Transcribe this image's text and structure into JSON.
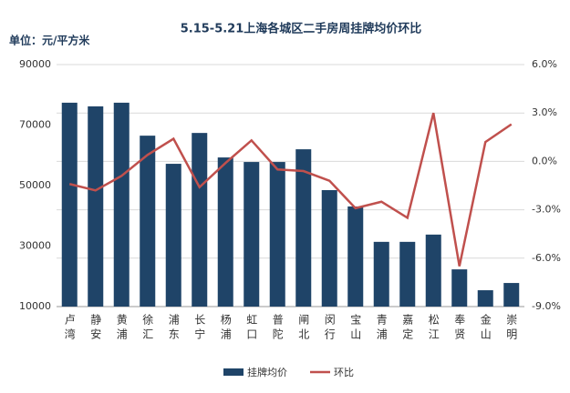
{
  "chart_data": {
    "type": "bar-line",
    "title": "5.15-5.21上海各城区二手房周挂牌均价环比",
    "y_label": "单位：元/平方米",
    "categories": [
      "卢湾",
      "静安",
      "黄浦",
      "徐汇",
      "浦东",
      "长宁",
      "杨浦",
      "虹口",
      "普陀",
      "闸北",
      "闵行",
      "宝山",
      "青浦",
      "嘉定",
      "松江",
      "奉贤",
      "金山",
      "崇明"
    ],
    "series": [
      {
        "name": "挂牌均价",
        "type": "bar",
        "color": "#1f4468",
        "values": [
          77400,
          76200,
          77400,
          66500,
          57200,
          67400,
          59300,
          57800,
          57800,
          62000,
          48500,
          43100,
          31400,
          31400,
          33800,
          22300,
          15400,
          17800
        ]
      },
      {
        "name": "环比",
        "type": "line",
        "axis": "y2",
        "color": "#c0504d",
        "values": [
          -1.4,
          -1.8,
          -0.9,
          0.4,
          1.4,
          -1.6,
          -0.1,
          1.3,
          -0.5,
          -0.6,
          -1.2,
          -2.9,
          -2.5,
          -3.5,
          3.0,
          -6.5,
          1.2,
          2.3
        ]
      }
    ],
    "ylim": [
      10000,
      90000
    ],
    "yticks": [
      10000,
      30000,
      50000,
      70000,
      90000
    ],
    "y2lim": [
      -9,
      6
    ],
    "y2ticks": [
      {
        "value": 6,
        "label": "6.0%"
      },
      {
        "value": 3,
        "label": "3.0%"
      },
      {
        "value": 0,
        "label": "0.0%"
      },
      {
        "value": -3,
        "label": "-3.0%"
      },
      {
        "value": -6,
        "label": "-6.0%"
      },
      {
        "value": -9,
        "label": "-9.0%"
      }
    ],
    "grid": true,
    "legend": "bottom"
  }
}
